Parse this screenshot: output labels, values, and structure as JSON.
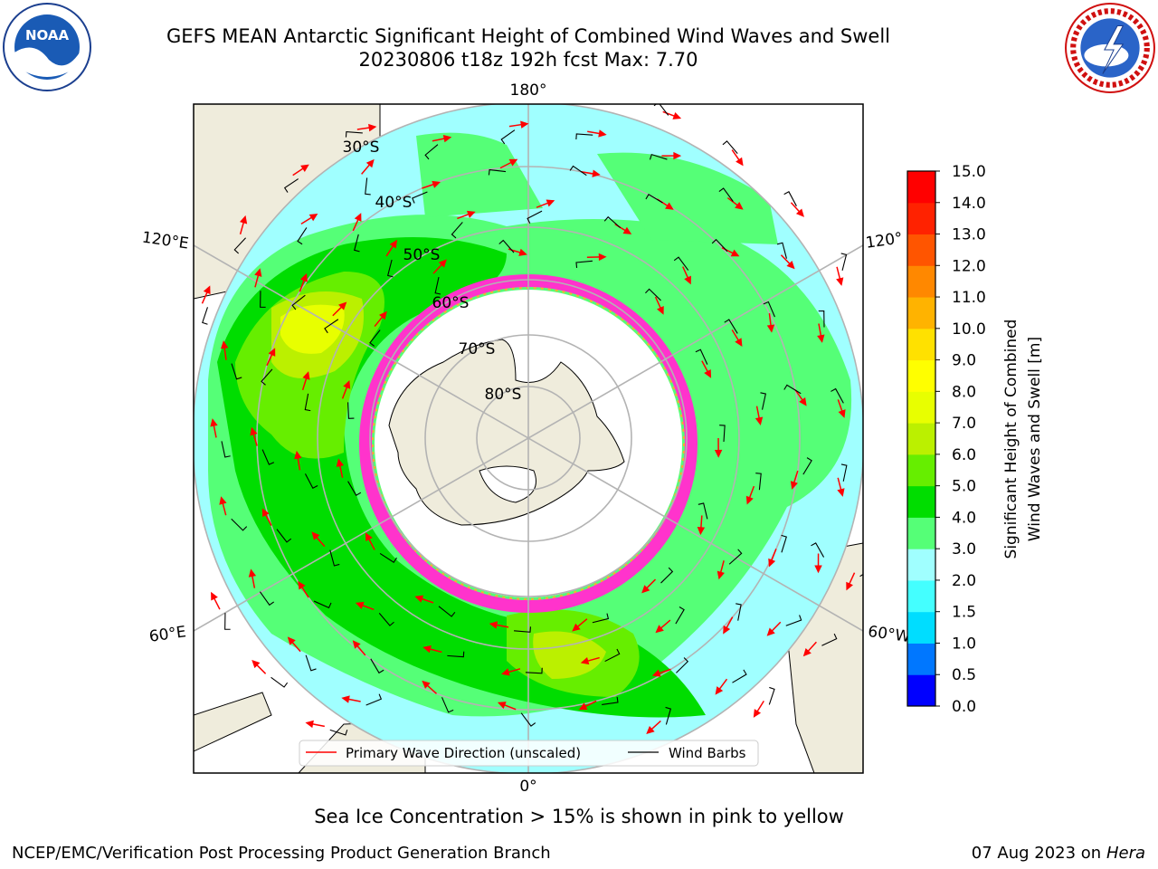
{
  "header": {
    "title_line1": "GEFS MEAN Antarctic Significant Height of Combined Wind Waves and Swell",
    "title_line2": "20230806 t18z 192h fcst   Max: 7.70"
  },
  "logos": {
    "left": "noaa-logo",
    "right": "nws-logo"
  },
  "map": {
    "projection": "south-polar-stereographic",
    "longitude_labels": [
      "180°",
      "120°E",
      "120°",
      "60°E",
      "60°W",
      "0°"
    ],
    "latitude_labels": [
      "30°S",
      "40°S",
      "50°S",
      "60°S",
      "70°S",
      "80°S"
    ],
    "legend": {
      "wave_direction": "Primary Wave Direction (unscaled)",
      "wind_barbs": "Wind Barbs"
    },
    "colors": {
      "land": "#efecdc",
      "ice_free_ocean_low": "#a0ffff",
      "ice_edge_pink": "#ff33cc",
      "arrow": "#ff0000",
      "grid": "#b3b3b3"
    }
  },
  "colorbar": {
    "label_line1": "Significant Height of Combined",
    "label_line2": "Wind Waves and Swell [m]",
    "ticks": [
      "0.0",
      "0.5",
      "1.0",
      "1.5",
      "2.0",
      "3.0",
      "4.0",
      "5.0",
      "6.0",
      "7.0",
      "8.0",
      "9.0",
      "10.0",
      "11.0",
      "12.0",
      "13.0",
      "14.0",
      "15.0"
    ],
    "colors": [
      "#0000ff",
      "#0077ff",
      "#00ddff",
      "#44ffff",
      "#a0ffff",
      "#55ff77",
      "#00dd00",
      "#66ee00",
      "#bbf000",
      "#e8ff00",
      "#ffff00",
      "#ffe100",
      "#ffb300",
      "#ff8800",
      "#ff5500",
      "#ff2200",
      "#ff0000"
    ]
  },
  "notes": {
    "sea_ice": "Sea Ice Concentration > 15% is shown in pink to yellow"
  },
  "footer": {
    "credit": "NCEP/EMC/Verification Post Processing Product Generation Branch",
    "date": "07 Aug 2023 on",
    "machine": "Hera"
  }
}
